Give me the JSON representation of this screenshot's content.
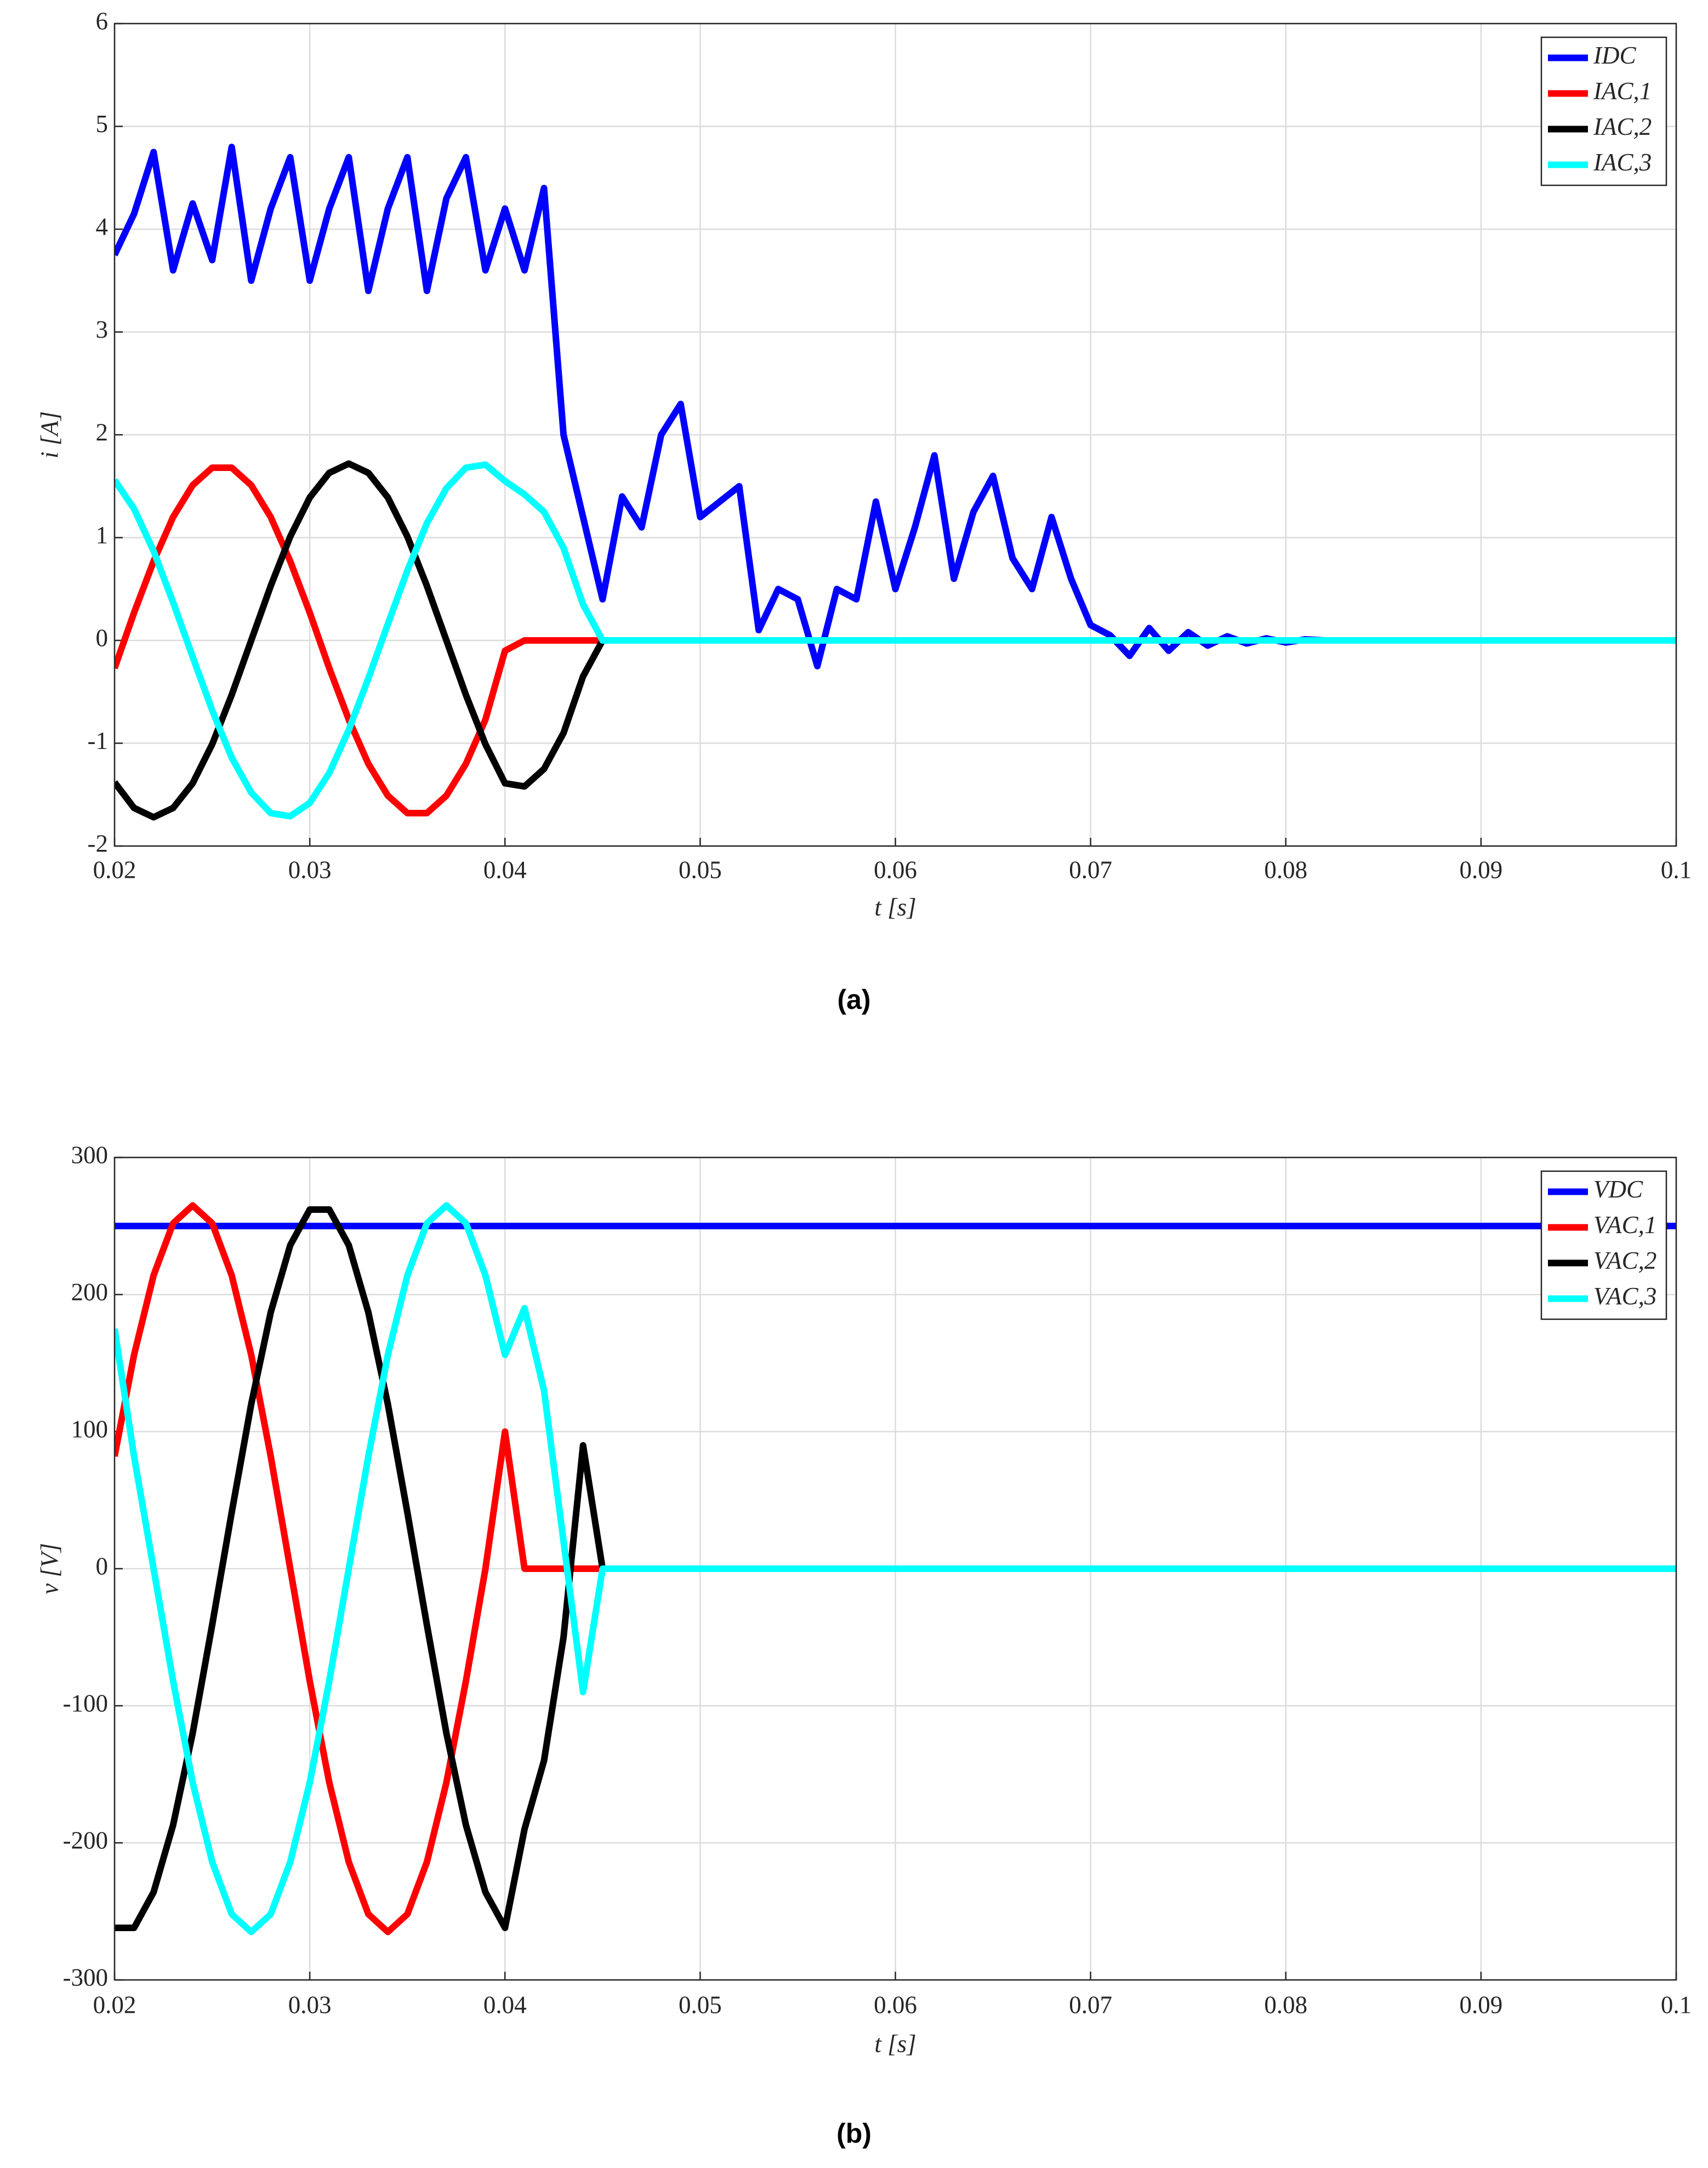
{
  "chart_data": [
    {
      "type": "line",
      "caption": "(a)",
      "xlabel": "t  [s]",
      "ylabel": "i  [A]",
      "x": [
        0.02,
        0.021,
        0.022,
        0.023,
        0.024,
        0.025,
        0.026,
        0.027,
        0.028,
        0.029,
        0.03,
        0.031,
        0.032,
        0.033,
        0.034,
        0.035,
        0.036,
        0.037,
        0.038,
        0.039,
        0.04,
        0.041,
        0.042,
        0.043,
        0.044,
        0.045,
        0.046,
        0.047,
        0.048,
        0.049,
        0.05,
        0.051,
        0.052,
        0.053,
        0.054,
        0.055,
        0.056,
        0.057,
        0.058,
        0.059,
        0.06,
        0.061,
        0.062,
        0.063,
        0.064,
        0.065,
        0.066,
        0.067,
        0.068,
        0.069,
        0.07,
        0.071,
        0.072,
        0.073,
        0.074,
        0.075,
        0.076,
        0.077,
        0.078,
        0.079,
        0.08,
        0.081,
        0.082,
        0.083,
        0.084,
        0.085,
        0.086,
        0.087,
        0.088,
        0.089,
        0.09,
        0.091,
        0.092,
        0.093,
        0.094,
        0.095,
        0.096,
        0.097,
        0.098,
        0.099,
        0.1
      ],
      "series": [
        {
          "name": "IDC",
          "color": "#0000ff",
          "values": [
            3.75,
            4.15,
            4.75,
            3.6,
            4.25,
            3.7,
            4.8,
            3.5,
            4.2,
            4.7,
            3.5,
            4.2,
            4.7,
            3.4,
            4.2,
            4.7,
            3.4,
            4.3,
            4.7,
            3.6,
            4.2,
            3.6,
            4.4,
            2.0,
            1.2,
            0.4,
            1.4,
            1.1,
            2.0,
            2.3,
            1.2,
            1.35,
            1.5,
            0.1,
            0.5,
            0.4,
            -0.25,
            0.5,
            0.4,
            1.35,
            0.5,
            1.1,
            1.8,
            0.6,
            1.25,
            1.6,
            0.8,
            0.5,
            1.2,
            0.6,
            0.15,
            0.05,
            -0.15,
            0.12,
            -0.1,
            0.08,
            -0.05,
            0.04,
            -0.03,
            0.02,
            -0.02,
            0.01,
            0,
            0,
            0,
            0,
            0,
            0,
            0,
            0,
            0,
            0,
            0,
            0,
            0,
            0,
            0,
            0,
            0,
            0,
            0
          ]
        },
        {
          "name": "IAC,1",
          "color": "#ff0000",
          "values": [
            -0.27,
            0.27,
            0.77,
            1.2,
            1.51,
            1.68,
            1.68,
            1.51,
            1.2,
            0.77,
            0.27,
            -0.27,
            -0.77,
            -1.2,
            -1.51,
            -1.68,
            -1.68,
            -1.51,
            -1.2,
            -0.77,
            -0.1,
            0,
            0,
            0,
            0,
            0,
            0,
            0,
            0,
            0,
            0,
            0,
            0,
            0,
            0,
            0,
            0,
            0,
            0,
            0,
            0,
            0,
            0,
            0,
            0,
            0,
            0,
            0,
            0,
            0,
            0,
            0,
            0,
            0,
            0,
            0,
            0,
            0,
            0,
            0,
            0,
            0,
            0,
            0,
            0,
            0,
            0,
            0,
            0,
            0,
            0,
            0,
            0,
            0,
            0,
            0,
            0,
            0,
            0,
            0,
            0
          ]
        },
        {
          "name": "IAC,2",
          "color": "#000000",
          "values": [
            -1.38,
            -1.63,
            -1.72,
            -1.63,
            -1.39,
            -1.01,
            -0.53,
            0,
            0.53,
            1.01,
            1.39,
            1.63,
            1.72,
            1.63,
            1.39,
            1.01,
            0.53,
            0,
            -0.53,
            -1.01,
            -1.39,
            -1.42,
            -1.25,
            -0.9,
            -0.35,
            0,
            0,
            0,
            0,
            0,
            0,
            0,
            0,
            0,
            0,
            0,
            0,
            0,
            0,
            0,
            0,
            0,
            0,
            0,
            0,
            0,
            0,
            0,
            0,
            0,
            0,
            0,
            0,
            0,
            0,
            0,
            0,
            0,
            0,
            0,
            0,
            0,
            0,
            0,
            0,
            0,
            0,
            0,
            0,
            0,
            0,
            0,
            0,
            0,
            0,
            0,
            0,
            0,
            0,
            0,
            0
          ]
        },
        {
          "name": "IAC,3",
          "color": "#00ffff",
          "values": [
            1.56,
            1.28,
            0.87,
            0.37,
            -0.16,
            -0.68,
            -1.14,
            -1.48,
            -1.68,
            -1.71,
            -1.58,
            -1.29,
            -0.87,
            -0.37,
            0.16,
            0.68,
            1.14,
            1.48,
            1.68,
            1.71,
            1.55,
            1.42,
            1.25,
            0.9,
            0.35,
            0,
            0,
            0,
            0,
            0,
            0,
            0,
            0,
            0,
            0,
            0,
            0,
            0,
            0,
            0,
            0,
            0,
            0,
            0,
            0,
            0,
            0,
            0,
            0,
            0,
            0,
            0,
            0,
            0,
            0,
            0,
            0,
            0,
            0,
            0,
            0,
            0,
            0,
            0,
            0,
            0,
            0,
            0,
            0,
            0,
            0,
            0,
            0,
            0,
            0,
            0,
            0,
            0,
            0,
            0,
            0
          ]
        }
      ],
      "xlim": [
        0.02,
        0.1
      ],
      "xticks": [
        0.02,
        0.03,
        0.04,
        0.05,
        0.06,
        0.07,
        0.08,
        0.09,
        0.1
      ],
      "ylim": [
        -2,
        6
      ],
      "yticks": [
        -2,
        -1,
        0,
        1,
        2,
        3,
        4,
        5,
        6
      ],
      "grid": true,
      "legend": "upper right"
    },
    {
      "type": "line",
      "caption": "(b)",
      "xlabel": "t  [s]",
      "ylabel": "v  [V]",
      "x": [
        0.02,
        0.021,
        0.022,
        0.023,
        0.024,
        0.025,
        0.026,
        0.027,
        0.028,
        0.029,
        0.03,
        0.031,
        0.032,
        0.033,
        0.034,
        0.035,
        0.036,
        0.037,
        0.038,
        0.039,
        0.04,
        0.041,
        0.042,
        0.043,
        0.044,
        0.045,
        0.046,
        0.047,
        0.048,
        0.049,
        0.05,
        0.051,
        0.052,
        0.053,
        0.054,
        0.055,
        0.056,
        0.057,
        0.058,
        0.059,
        0.06,
        0.061,
        0.062,
        0.063,
        0.064,
        0.065,
        0.066,
        0.067,
        0.068,
        0.069,
        0.07,
        0.071,
        0.072,
        0.073,
        0.074,
        0.075,
        0.076,
        0.077,
        0.078,
        0.079,
        0.08,
        0.081,
        0.082,
        0.083,
        0.084,
        0.085,
        0.086,
        0.087,
        0.088,
        0.089,
        0.09,
        0.091,
        0.092,
        0.093,
        0.094,
        0.095,
        0.096,
        0.097,
        0.098,
        0.099,
        0.1
      ],
      "series": [
        {
          "name": "VDC",
          "color": "#0000ff",
          "values": [
            250,
            250,
            250,
            250,
            250,
            250,
            250,
            250,
            250,
            250,
            250,
            250,
            250,
            250,
            250,
            250,
            250,
            250,
            250,
            250,
            250,
            250,
            250,
            250,
            250,
            250,
            250,
            250,
            250,
            250,
            250,
            250,
            250,
            250,
            250,
            250,
            250,
            250,
            250,
            250,
            250,
            250,
            250,
            250,
            250,
            250,
            250,
            250,
            250,
            250,
            250,
            250,
            250,
            250,
            250,
            250,
            250,
            250,
            250,
            250,
            250,
            250,
            250,
            250,
            250,
            250,
            250,
            250,
            250,
            250,
            250,
            250,
            250,
            250,
            250,
            250,
            250,
            250,
            250,
            250,
            250
          ]
        },
        {
          "name": "VAC,1",
          "color": "#ff0000",
          "values": [
            82,
            156,
            214,
            252,
            265,
            252,
            214,
            156,
            82,
            0,
            -82,
            -156,
            -214,
            -252,
            -265,
            -252,
            -214,
            -156,
            -82,
            0,
            100,
            0,
            0,
            0,
            0,
            0,
            0,
            0,
            0,
            0,
            0,
            0,
            0,
            0,
            0,
            0,
            0,
            0,
            0,
            0,
            0,
            0,
            0,
            0,
            0,
            0,
            0,
            0,
            0,
            0,
            0,
            0,
            0,
            0,
            0,
            0,
            0,
            0,
            0,
            0,
            0,
            0,
            0,
            0,
            0,
            0,
            0,
            0,
            0,
            0,
            0,
            0,
            0,
            0,
            0,
            0,
            0,
            0,
            0,
            0,
            0
          ]
        },
        {
          "name": "VAC,2",
          "color": "#000000",
          "values": [
            -262,
            -262,
            -236,
            -187,
            -120,
            -41,
            41,
            120,
            187,
            236,
            262,
            262,
            236,
            187,
            120,
            41,
            -41,
            -120,
            -187,
            -236,
            -262,
            -190,
            -140,
            -50,
            90,
            0,
            0,
            0,
            0,
            0,
            0,
            0,
            0,
            0,
            0,
            0,
            0,
            0,
            0,
            0,
            0,
            0,
            0,
            0,
            0,
            0,
            0,
            0,
            0,
            0,
            0,
            0,
            0,
            0,
            0,
            0,
            0,
            0,
            0,
            0,
            0,
            0,
            0,
            0,
            0,
            0,
            0,
            0,
            0,
            0,
            0,
            0,
            0,
            0,
            0,
            0,
            0,
            0,
            0,
            0,
            0
          ]
        },
        {
          "name": "VAC,3",
          "color": "#00ffff",
          "values": [
            175,
            82,
            0,
            -82,
            -156,
            -214,
            -252,
            -265,
            -252,
            -214,
            -156,
            -82,
            0,
            82,
            156,
            214,
            252,
            265,
            252,
            214,
            156,
            190,
            130,
            20,
            -90,
            0,
            0,
            0,
            0,
            0,
            0,
            0,
            0,
            0,
            0,
            0,
            0,
            0,
            0,
            0,
            0,
            0,
            0,
            0,
            0,
            0,
            0,
            0,
            0,
            0,
            0,
            0,
            0,
            0,
            0,
            0,
            0,
            0,
            0,
            0,
            0,
            0,
            0,
            0,
            0,
            0,
            0,
            0,
            0,
            0,
            0,
            0,
            0,
            0,
            0,
            0,
            0,
            0,
            0,
            0,
            0
          ]
        }
      ],
      "xlim": [
        0.02,
        0.1
      ],
      "xticks": [
        0.02,
        0.03,
        0.04,
        0.05,
        0.06,
        0.07,
        0.08,
        0.09,
        0.1
      ],
      "ylim": [
        -300,
        300
      ],
      "yticks": [
        -300,
        -200,
        -100,
        0,
        100,
        200,
        300
      ],
      "grid": true,
      "legend": "upper right"
    }
  ]
}
